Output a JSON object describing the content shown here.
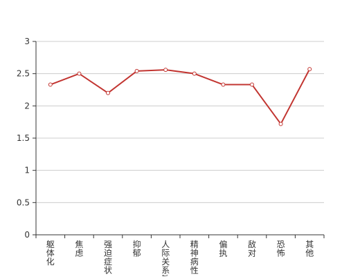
{
  "chart_data": {
    "type": "line",
    "title": "",
    "xlabel": "",
    "ylabel": "",
    "categories": [
      "躯体化",
      "焦虑",
      "强迫症状",
      "抑郁",
      "人际关系敏感",
      "精神病性",
      "偏执",
      "敌对",
      "恐怖",
      "其他"
    ],
    "y_ticks": [
      "0",
      "0.5",
      "1",
      "1.5",
      "2",
      "2.5",
      "3"
    ],
    "ylim": [
      0,
      3
    ],
    "grid": true,
    "legend": "none",
    "series": [
      {
        "values": [
          2.33,
          2.5,
          2.2,
          2.54,
          2.56,
          2.5,
          2.33,
          2.33,
          1.72,
          2.57
        ]
      }
    ],
    "colors": {
      "line": "#c23531",
      "grid": "#cccccc",
      "axis": "#333333",
      "tick_text": "#333333"
    }
  }
}
